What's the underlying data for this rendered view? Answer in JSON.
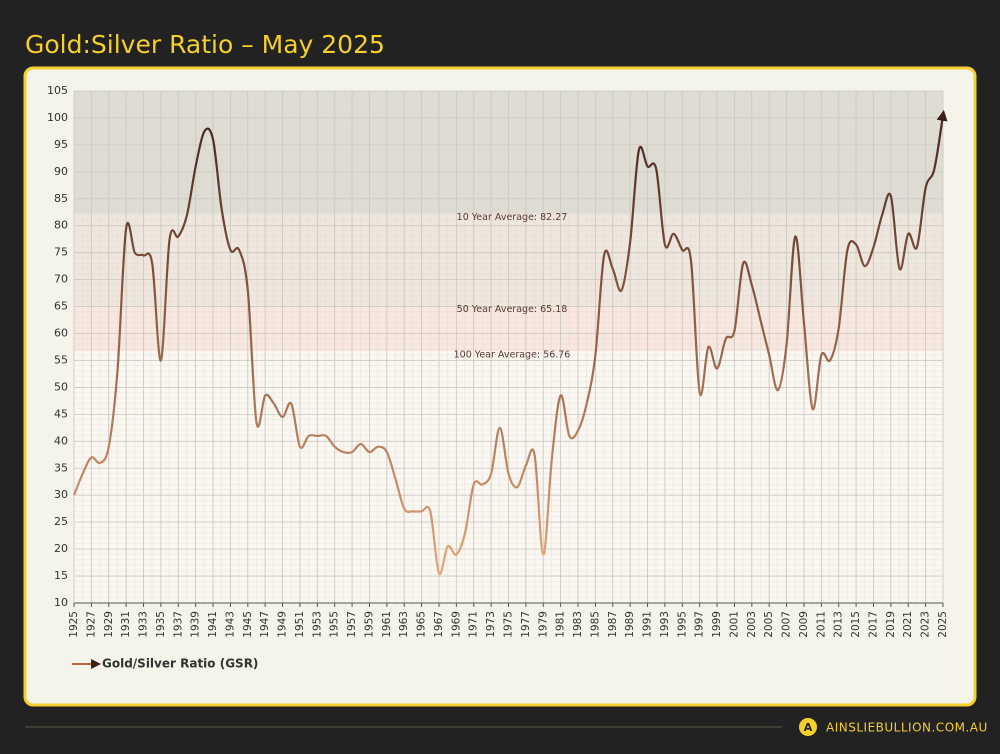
{
  "header": {
    "title": "Gold:Silver Ratio – May 2025"
  },
  "chart_data": {
    "type": "line",
    "x": [
      1925,
      1926,
      1927,
      1928,
      1929,
      1930,
      1931,
      1932,
      1933,
      1934,
      1935,
      1936,
      1937,
      1938,
      1939,
      1940,
      1941,
      1942,
      1943,
      1944,
      1945,
      1946,
      1947,
      1948,
      1949,
      1950,
      1951,
      1952,
      1953,
      1954,
      1955,
      1956,
      1957,
      1958,
      1959,
      1960,
      1961,
      1962,
      1963,
      1964,
      1965,
      1966,
      1967,
      1968,
      1969,
      1970,
      1971,
      1972,
      1973,
      1974,
      1975,
      1976,
      1977,
      1978,
      1979,
      1980,
      1981,
      1982,
      1983,
      1984,
      1985,
      1986,
      1987,
      1988,
      1989,
      1990,
      1991,
      1992,
      1993,
      1994,
      1995,
      1996,
      1997,
      1998,
      1999,
      2000,
      2001,
      2002,
      2003,
      2004,
      2005,
      2006,
      2007,
      2008,
      2009,
      2010,
      2011,
      2012,
      2013,
      2014,
      2015,
      2016,
      2017,
      2018,
      2019,
      2020,
      2021,
      2022,
      2023,
      2024,
      2025
    ],
    "series": [
      {
        "name": "Gold/Silver Ratio (GSR)",
        "color": "#b8653f",
        "values": [
          30,
          34,
          37,
          36,
          39,
          53,
          79.5,
          75,
          74.5,
          73,
          55,
          77.5,
          78,
          82,
          91,
          97.5,
          96,
          83,
          75.5,
          75.5,
          68,
          43.5,
          48.5,
          47,
          44.5,
          47,
          39,
          41,
          41,
          41,
          39,
          38,
          38,
          39.5,
          38,
          39,
          38,
          33,
          27.5,
          27,
          27,
          27,
          15.5,
          20.5,
          19,
          23,
          32,
          32,
          34,
          42.5,
          34,
          31.5,
          35.5,
          37.5,
          19,
          37,
          48.5,
          41,
          42,
          47,
          56,
          74.5,
          72,
          68,
          77,
          94,
          91,
          90.5,
          76.5,
          78.5,
          75.5,
          73.5,
          49,
          57.5,
          53.5,
          59,
          60.5,
          73,
          69,
          62.5,
          56,
          49.5,
          58,
          78,
          62,
          46,
          56,
          55,
          61,
          75.5,
          76.5,
          72.5,
          76,
          82,
          85.5,
          72,
          78.5,
          76,
          87,
          90.5,
          100.5
        ]
      }
    ],
    "gradient_colors": [
      "#3d1f1a",
      "#f0ad80"
    ],
    "averages": [
      {
        "label": "10 Year Average: 82.27",
        "value": 82.27,
        "color": "#dcd9d0"
      },
      {
        "label": "50 Year Average: 65.18",
        "value": 65.18,
        "color": "#ede4db"
      },
      {
        "label": "100 Year Average: 56.76",
        "value": 56.76,
        "color": "#f7e6dc"
      }
    ],
    "xlim": [
      1925,
      2025
    ],
    "xticks": [
      1925,
      1927,
      1929,
      1931,
      1933,
      1935,
      1937,
      1939,
      1941,
      1943,
      1945,
      1947,
      1949,
      1951,
      1953,
      1955,
      1957,
      1959,
      1961,
      1963,
      1965,
      1967,
      1969,
      1971,
      1973,
      1975,
      1977,
      1979,
      1981,
      1983,
      1985,
      1987,
      1989,
      1991,
      1993,
      1995,
      1997,
      1999,
      2001,
      2003,
      2005,
      2007,
      2009,
      2011,
      2013,
      2015,
      2017,
      2019,
      2021,
      2023,
      2025
    ],
    "ylim": [
      10,
      105
    ],
    "yticks": [
      10,
      15,
      20,
      25,
      30,
      35,
      40,
      45,
      50,
      55,
      60,
      65,
      70,
      75,
      80,
      85,
      90,
      95,
      100,
      105
    ],
    "grid": true,
    "legend": "bottom-left"
  },
  "footer": {
    "site": "AINSLIEBULLION.COM.AU",
    "logo": "A"
  }
}
